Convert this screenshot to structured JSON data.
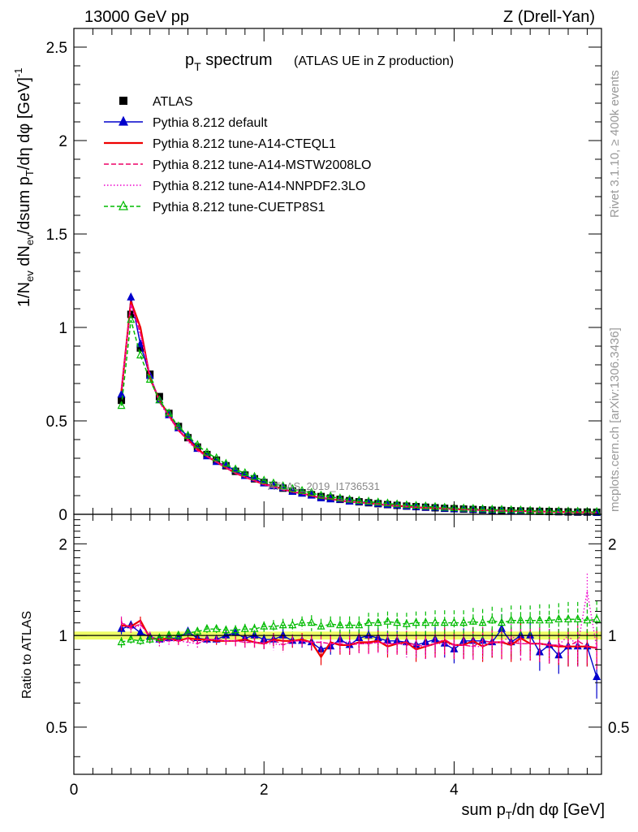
{
  "header": {
    "energy": "13000 GeV pp",
    "process": "Z (Drell-Yan)"
  },
  "side_text": {
    "rivet": "Rivet 3.1.10, ≥ 400k events",
    "mcplots": "mcplots.cern.ch [arXiv:1306.3436]"
  },
  "watermark": "ATLAS_2019_I1736531",
  "colors": {
    "atlas": "#000000",
    "default": "#0000cc",
    "cteql1": "#ee0000",
    "mstw": "#ee0066",
    "nnpdf": "#ee00cc",
    "cuetp8s1": "#00bb00",
    "band": "#eeff66"
  },
  "chart_data": [
    {
      "type": "line",
      "title_main": "p",
      "title_sub": "T",
      "title_rest": " spectrum",
      "title_note": "(ATLAS UE in Z production)",
      "ylabel": "1/N_ev dN_ev/dsum p_T/dη dφ [GeV]^-1",
      "ylim": [
        0,
        2.6
      ],
      "yticks": [
        "0",
        "0.5",
        "1",
        "1.5",
        "2",
        "2.5"
      ],
      "ytick_values": [
        0,
        0.5,
        1,
        1.5,
        2,
        2.5
      ],
      "xlim": [
        0,
        5.55
      ],
      "x": [
        0.5,
        0.6,
        0.7,
        0.8,
        0.9,
        1.0,
        1.1,
        1.2,
        1.3,
        1.4,
        1.5,
        1.6,
        1.7,
        1.8,
        1.9,
        2.0,
        2.1,
        2.2,
        2.3,
        2.4,
        2.5,
        2.6,
        2.7,
        2.8,
        2.9,
        3.0,
        3.1,
        3.2,
        3.3,
        3.4,
        3.5,
        3.6,
        3.7,
        3.8,
        3.9,
        4.0,
        4.1,
        4.2,
        4.3,
        4.4,
        4.5,
        4.6,
        4.7,
        4.8,
        4.9,
        5.0,
        5.1,
        5.2,
        5.3,
        5.4,
        5.5
      ],
      "series": [
        {
          "name": "ATLAS",
          "key": "atlas",
          "style": "square",
          "values": [
            0.61,
            1.07,
            0.89,
            0.75,
            0.63,
            0.54,
            0.47,
            0.41,
            0.36,
            0.32,
            0.29,
            0.26,
            0.23,
            0.21,
            0.19,
            0.17,
            0.155,
            0.14,
            0.125,
            0.115,
            0.105,
            0.095,
            0.087,
            0.08,
            0.073,
            0.067,
            0.062,
            0.057,
            0.052,
            0.048,
            0.044,
            0.041,
            0.038,
            0.035,
            0.032,
            0.03,
            0.028,
            0.026,
            0.024,
            0.022,
            0.021,
            0.019,
            0.018,
            0.017,
            0.016,
            0.015,
            0.014,
            0.013,
            0.012,
            0.012,
            0.011
          ]
        },
        {
          "name": "Pythia 8.212 default",
          "key": "default",
          "style": "tri-filled",
          "values": [
            0.64,
            1.16,
            0.91,
            0.74,
            0.61,
            0.53,
            0.46,
            0.42,
            0.35,
            0.31,
            0.28,
            0.26,
            0.235,
            0.205,
            0.19,
            0.165,
            0.15,
            0.14,
            0.12,
            0.11,
            0.1,
            0.085,
            0.08,
            0.078,
            0.068,
            0.066,
            0.062,
            0.056,
            0.05,
            0.046,
            0.042,
            0.038,
            0.036,
            0.034,
            0.03,
            0.027,
            0.027,
            0.025,
            0.023,
            0.021,
            0.022,
            0.018,
            0.018,
            0.017,
            0.014,
            0.014,
            0.012,
            0.012,
            0.011,
            0.011,
            0.008
          ]
        },
        {
          "name": "Pythia 8.212 tune-A14-CTEQL1",
          "key": "cteql1",
          "style": "solid",
          "values": [
            0.66,
            1.14,
            1.0,
            0.73,
            0.61,
            0.53,
            0.45,
            0.4,
            0.35,
            0.31,
            0.28,
            0.25,
            0.22,
            0.2,
            0.18,
            0.16,
            0.15,
            0.135,
            0.12,
            0.112,
            0.1,
            0.088,
            0.083,
            0.074,
            0.068,
            0.064,
            0.058,
            0.055,
            0.048,
            0.045,
            0.042,
            0.037,
            0.035,
            0.033,
            0.031,
            0.028,
            0.026,
            0.025,
            0.022,
            0.021,
            0.02,
            0.018,
            0.018,
            0.016,
            0.015,
            0.014,
            0.013,
            0.012,
            0.011,
            0.011,
            0.01
          ]
        },
        {
          "name": "Pythia 8.212 tune-A14-MSTW2008LO",
          "key": "mstw",
          "style": "dashed",
          "values": [
            0.67,
            1.13,
            0.97,
            0.74,
            0.6,
            0.53,
            0.45,
            0.4,
            0.34,
            0.31,
            0.28,
            0.25,
            0.22,
            0.2,
            0.18,
            0.16,
            0.15,
            0.13,
            0.12,
            0.11,
            0.1,
            0.09,
            0.082,
            0.075,
            0.068,
            0.063,
            0.058,
            0.054,
            0.049,
            0.045,
            0.042,
            0.038,
            0.035,
            0.033,
            0.031,
            0.028,
            0.026,
            0.024,
            0.023,
            0.021,
            0.02,
            0.018,
            0.017,
            0.016,
            0.015,
            0.014,
            0.013,
            0.012,
            0.012,
            0.011,
            0.01
          ]
        },
        {
          "name": "Pythia 8.212 tune-A14-NNPDF2.3LO",
          "key": "nnpdf",
          "style": "dotted",
          "values": [
            0.68,
            1.12,
            0.96,
            0.75,
            0.6,
            0.52,
            0.45,
            0.39,
            0.34,
            0.31,
            0.28,
            0.25,
            0.22,
            0.2,
            0.18,
            0.16,
            0.145,
            0.13,
            0.12,
            0.11,
            0.1,
            0.09,
            0.082,
            0.076,
            0.069,
            0.063,
            0.058,
            0.054,
            0.049,
            0.045,
            0.041,
            0.038,
            0.035,
            0.033,
            0.03,
            0.028,
            0.026,
            0.024,
            0.022,
            0.021,
            0.02,
            0.019,
            0.017,
            0.016,
            0.015,
            0.014,
            0.013,
            0.013,
            0.012,
            0.011,
            0.01
          ]
        },
        {
          "name": "Pythia 8.212 tune-CUETP8S1",
          "key": "cuetp8s1",
          "style": "tri-open-dashed",
          "values": [
            0.58,
            1.04,
            0.85,
            0.72,
            0.61,
            0.54,
            0.47,
            0.42,
            0.37,
            0.33,
            0.3,
            0.27,
            0.24,
            0.22,
            0.2,
            0.18,
            0.165,
            0.15,
            0.135,
            0.125,
            0.115,
            0.1,
            0.095,
            0.085,
            0.078,
            0.072,
            0.068,
            0.063,
            0.058,
            0.053,
            0.048,
            0.045,
            0.042,
            0.039,
            0.035,
            0.033,
            0.031,
            0.029,
            0.027,
            0.025,
            0.024,
            0.022,
            0.021,
            0.019,
            0.018,
            0.017,
            0.016,
            0.015,
            0.014,
            0.013,
            0.012
          ]
        }
      ]
    },
    {
      "type": "line",
      "ylabel": "Ratio to ATLAS",
      "xlabel": "sum p_T/dη dφ [GeV]",
      "ylim": [
        0.35,
        2.5
      ],
      "yscale": "log",
      "yticks": [
        "0.5",
        "1",
        "2"
      ],
      "ytick_values": [
        0.5,
        1,
        2
      ],
      "xticks": [
        "0",
        "2",
        "4"
      ],
      "xtick_values": [
        0,
        2,
        4
      ],
      "xlim": [
        0,
        5.55
      ],
      "reference": 1,
      "band_halfwidth": 0.03,
      "x": [
        0.5,
        0.6,
        0.7,
        0.8,
        0.9,
        1.0,
        1.1,
        1.2,
        1.3,
        1.4,
        1.5,
        1.6,
        1.7,
        1.8,
        1.9,
        2.0,
        2.1,
        2.2,
        2.3,
        2.4,
        2.5,
        2.6,
        2.7,
        2.8,
        2.9,
        3.0,
        3.1,
        3.2,
        3.3,
        3.4,
        3.5,
        3.6,
        3.7,
        3.8,
        3.9,
        4.0,
        4.1,
        4.2,
        4.3,
        4.4,
        4.5,
        4.6,
        4.7,
        4.8,
        4.9,
        5.0,
        5.1,
        5.2,
        5.3,
        5.4,
        5.5
      ],
      "series": [
        {
          "key": "default",
          "style": "tri-filled",
          "values": [
            1.05,
            1.08,
            1.02,
            0.99,
            0.97,
            0.98,
            0.98,
            1.03,
            0.98,
            0.97,
            0.97,
            1.0,
            1.02,
            0.98,
            1.0,
            0.97,
            0.97,
            1.0,
            0.96,
            0.96,
            0.95,
            0.9,
            0.92,
            0.97,
            0.93,
            0.98,
            1.0,
            0.98,
            0.96,
            0.96,
            0.95,
            0.93,
            0.95,
            0.97,
            0.94,
            0.9,
            0.96,
            0.96,
            0.96,
            0.95,
            1.05,
            0.95,
            1.0,
            1.0,
            0.88,
            0.93,
            0.86,
            0.92,
            0.92,
            0.92,
            0.73
          ],
          "errors": [
            0.04,
            0.03,
            0.03,
            0.03,
            0.03,
            0.03,
            0.03,
            0.03,
            0.03,
            0.03,
            0.03,
            0.03,
            0.04,
            0.04,
            0.04,
            0.04,
            0.05,
            0.05,
            0.05,
            0.05,
            0.06,
            0.06,
            0.06,
            0.07,
            0.07,
            0.07,
            0.08,
            0.08,
            0.08,
            0.08,
            0.09,
            0.09,
            0.09,
            0.1,
            0.1,
            0.1,
            0.1,
            0.11,
            0.11,
            0.11,
            0.12,
            0.12,
            0.12,
            0.12,
            0.13,
            0.13,
            0.13,
            0.14,
            0.14,
            0.14,
            0.15
          ]
        },
        {
          "key": "cteql1",
          "style": "solid",
          "values": [
            1.08,
            1.07,
            1.12,
            0.98,
            0.97,
            0.98,
            0.96,
            0.98,
            0.97,
            0.97,
            0.96,
            0.96,
            0.96,
            0.97,
            0.95,
            0.94,
            0.97,
            0.96,
            0.96,
            0.97,
            0.95,
            0.85,
            0.95,
            0.93,
            0.93,
            0.95,
            0.95,
            0.96,
            0.92,
            0.94,
            0.95,
            0.9,
            0.92,
            0.94,
            0.96,
            0.93,
            0.93,
            0.96,
            0.92,
            0.95,
            0.95,
            0.93,
            0.98,
            0.94,
            0.94,
            0.93,
            0.92,
            0.92,
            0.92,
            0.92,
            0.91
          ],
          "errors": [
            0.04,
            0.03,
            0.03,
            0.03,
            0.03,
            0.03,
            0.03,
            0.03,
            0.03,
            0.03,
            0.03,
            0.03,
            0.04,
            0.04,
            0.04,
            0.04,
            0.05,
            0.05,
            0.05,
            0.05,
            0.06,
            0.06,
            0.06,
            0.07,
            0.07,
            0.07,
            0.08,
            0.08,
            0.08,
            0.08,
            0.09,
            0.09,
            0.09,
            0.1,
            0.1,
            0.1,
            0.1,
            0.11,
            0.11,
            0.11,
            0.12,
            0.12,
            0.12,
            0.12,
            0.13,
            0.13,
            0.13,
            0.14,
            0.14,
            0.14,
            0.15
          ]
        },
        {
          "key": "mstw",
          "style": "dashed",
          "values": [
            1.1,
            1.06,
            1.09,
            0.99,
            0.95,
            0.98,
            0.96,
            0.98,
            0.94,
            0.97,
            0.97,
            0.96,
            0.96,
            0.95,
            0.95,
            0.94,
            0.97,
            0.93,
            0.96,
            0.96,
            0.95,
            0.95,
            0.94,
            0.94,
            0.93,
            0.94,
            0.94,
            0.95,
            0.94,
            0.94,
            0.95,
            0.93,
            0.92,
            0.94,
            0.97,
            0.93,
            0.93,
            0.92,
            0.96,
            0.95,
            0.95,
            0.95,
            0.94,
            0.94,
            0.94,
            0.93,
            0.93,
            0.92,
            0.96,
            0.92,
            0.91
          ],
          "errors": [
            0.04,
            0.03,
            0.03,
            0.03,
            0.03,
            0.03,
            0.03,
            0.03,
            0.03,
            0.03,
            0.03,
            0.03,
            0.04,
            0.04,
            0.04,
            0.04,
            0.05,
            0.05,
            0.05,
            0.05,
            0.06,
            0.06,
            0.06,
            0.07,
            0.07,
            0.07,
            0.08,
            0.08,
            0.08,
            0.08,
            0.09,
            0.09,
            0.09,
            0.1,
            0.1,
            0.1,
            0.1,
            0.11,
            0.11,
            0.11,
            0.12,
            0.12,
            0.12,
            0.12,
            0.13,
            0.13,
            0.13,
            0.14,
            0.14,
            0.14,
            0.15
          ]
        },
        {
          "key": "nnpdf",
          "style": "dotted",
          "values": [
            1.11,
            1.05,
            1.08,
            1.0,
            0.95,
            0.96,
            0.96,
            0.95,
            0.94,
            0.97,
            0.97,
            0.96,
            0.96,
            0.95,
            0.95,
            0.94,
            0.94,
            0.93,
            0.96,
            0.96,
            0.95,
            0.95,
            0.94,
            0.95,
            0.95,
            0.94,
            0.94,
            0.95,
            0.94,
            0.94,
            0.93,
            0.93,
            0.92,
            0.94,
            0.94,
            0.93,
            0.93,
            0.92,
            0.92,
            0.95,
            0.95,
            1.0,
            0.94,
            0.94,
            0.94,
            0.93,
            0.93,
            1.0,
            0.92,
            1.4,
            0.91
          ],
          "errors": [
            0.04,
            0.03,
            0.03,
            0.03,
            0.03,
            0.03,
            0.03,
            0.03,
            0.03,
            0.03,
            0.03,
            0.03,
            0.04,
            0.04,
            0.04,
            0.04,
            0.05,
            0.05,
            0.05,
            0.05,
            0.06,
            0.06,
            0.06,
            0.07,
            0.07,
            0.07,
            0.08,
            0.08,
            0.08,
            0.08,
            0.09,
            0.09,
            0.09,
            0.1,
            0.1,
            0.1,
            0.1,
            0.11,
            0.11,
            0.11,
            0.12,
            0.12,
            0.12,
            0.12,
            0.13,
            0.13,
            0.13,
            0.14,
            0.14,
            0.14,
            0.15
          ]
        },
        {
          "key": "cuetp8s1",
          "style": "tri-open-dashed",
          "values": [
            0.95,
            0.97,
            0.96,
            0.97,
            0.98,
            1.0,
            1.0,
            1.02,
            1.03,
            1.05,
            1.05,
            1.04,
            1.04,
            1.05,
            1.05,
            1.07,
            1.07,
            1.08,
            1.08,
            1.1,
            1.1,
            1.07,
            1.09,
            1.08,
            1.08,
            1.08,
            1.1,
            1.1,
            1.11,
            1.1,
            1.09,
            1.1,
            1.1,
            1.1,
            1.1,
            1.1,
            1.1,
            1.11,
            1.1,
            1.12,
            1.1,
            1.12,
            1.12,
            1.12,
            1.12,
            1.12,
            1.13,
            1.13,
            1.13,
            1.12,
            1.13
          ],
          "errors": [
            0.04,
            0.03,
            0.03,
            0.03,
            0.03,
            0.03,
            0.03,
            0.03,
            0.03,
            0.03,
            0.03,
            0.03,
            0.04,
            0.04,
            0.04,
            0.04,
            0.05,
            0.05,
            0.05,
            0.05,
            0.06,
            0.06,
            0.06,
            0.07,
            0.07,
            0.07,
            0.08,
            0.08,
            0.08,
            0.08,
            0.09,
            0.09,
            0.09,
            0.1,
            0.1,
            0.1,
            0.1,
            0.11,
            0.11,
            0.11,
            0.12,
            0.12,
            0.12,
            0.12,
            0.13,
            0.13,
            0.13,
            0.14,
            0.14,
            0.14,
            0.15
          ]
        }
      ]
    }
  ]
}
